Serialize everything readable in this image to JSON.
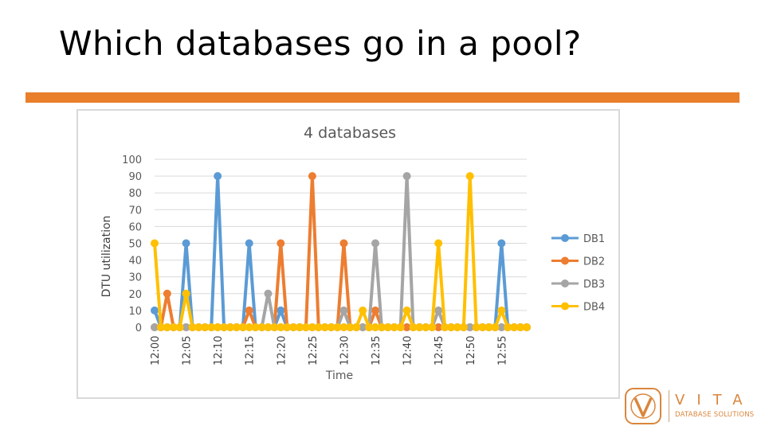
{
  "slide": {
    "title": "Which databases go in a pool?"
  },
  "colors": {
    "accent_bar": "#e97f2b",
    "db1": "#5b9bd5",
    "db2": "#ed7d31",
    "db3": "#a5a5a5",
    "db4": "#ffc000",
    "logo": "#d9863d"
  },
  "logo": {
    "name": "VITA",
    "subtitle": "DATABASE SOLUTIONS",
    "mark_icon": "vita-v-logo-icon"
  },
  "chart_data": {
    "type": "line",
    "title": "4 databases",
    "xlabel": "Time",
    "ylabel": "DTU utilization",
    "ylim": [
      0,
      100
    ],
    "yticks": [
      0,
      10,
      20,
      30,
      40,
      50,
      60,
      70,
      80,
      90,
      100
    ],
    "grid": true,
    "legend_position": "right",
    "x_tick_labels": [
      "12:00",
      "12:05",
      "12:10",
      "12:15",
      "12:20",
      "12:25",
      "12:30",
      "12:35",
      "12:40",
      "12:45",
      "12:50",
      "12:55"
    ],
    "x": [
      "12:00",
      "12:01",
      "12:02",
      "12:03",
      "12:04",
      "12:05",
      "12:06",
      "12:07",
      "12:08",
      "12:09",
      "12:10",
      "12:11",
      "12:12",
      "12:13",
      "12:14",
      "12:15",
      "12:16",
      "12:17",
      "12:18",
      "12:19",
      "12:20",
      "12:21",
      "12:22",
      "12:23",
      "12:24",
      "12:25",
      "12:26",
      "12:27",
      "12:28",
      "12:29",
      "12:30",
      "12:31",
      "12:32",
      "12:33",
      "12:34",
      "12:35",
      "12:36",
      "12:37",
      "12:38",
      "12:39",
      "12:40",
      "12:41",
      "12:42",
      "12:43",
      "12:44",
      "12:45",
      "12:46",
      "12:47",
      "12:48",
      "12:49",
      "12:50",
      "12:51",
      "12:52",
      "12:53",
      "12:54",
      "12:55",
      "12:56",
      "12:57",
      "12:58",
      "12:59"
    ],
    "series": [
      {
        "name": "DB1",
        "color": "#5b9bd5",
        "values": [
          10,
          0,
          0,
          0,
          0,
          50,
          0,
          0,
          0,
          0,
          90,
          0,
          0,
          0,
          0,
          50,
          0,
          0,
          0,
          0,
          10,
          0,
          0,
          0,
          0,
          0,
          0,
          0,
          0,
          0,
          0,
          0,
          0,
          0,
          0,
          0,
          0,
          0,
          0,
          0,
          0,
          0,
          0,
          0,
          0,
          0,
          0,
          0,
          0,
          0,
          0,
          0,
          0,
          0,
          0,
          50,
          0,
          0,
          0,
          0
        ]
      },
      {
        "name": "DB2",
        "color": "#ed7d31",
        "values": [
          0,
          0,
          20,
          0,
          0,
          0,
          0,
          0,
          0,
          0,
          0,
          0,
          0,
          0,
          0,
          10,
          0,
          0,
          0,
          0,
          50,
          0,
          0,
          0,
          0,
          90,
          0,
          0,
          0,
          0,
          50,
          0,
          0,
          0,
          0,
          10,
          0,
          0,
          0,
          0,
          0,
          0,
          0,
          0,
          0,
          0,
          0,
          0,
          0,
          0,
          0,
          0,
          0,
          0,
          0,
          0,
          0,
          0,
          0,
          0
        ]
      },
      {
        "name": "DB3",
        "color": "#a5a5a5",
        "values": [
          0,
          0,
          0,
          0,
          0,
          0,
          0,
          0,
          0,
          0,
          0,
          0,
          0,
          0,
          0,
          0,
          0,
          0,
          20,
          0,
          0,
          0,
          0,
          0,
          0,
          0,
          0,
          0,
          0,
          0,
          10,
          0,
          0,
          0,
          0,
          50,
          0,
          0,
          0,
          0,
          90,
          0,
          0,
          0,
          0,
          10,
          0,
          0,
          0,
          0,
          0,
          0,
          0,
          0,
          0,
          0,
          0,
          0,
          0,
          0
        ]
      },
      {
        "name": "DB4",
        "color": "#ffc000",
        "values": [
          50,
          0,
          0,
          0,
          0,
          20,
          0,
          0,
          0,
          0,
          0,
          0,
          0,
          0,
          0,
          0,
          0,
          0,
          0,
          0,
          0,
          0,
          0,
          0,
          0,
          0,
          0,
          0,
          0,
          0,
          0,
          0,
          0,
          10,
          0,
          0,
          0,
          0,
          0,
          0,
          10,
          0,
          0,
          0,
          0,
          50,
          0,
          0,
          0,
          0,
          90,
          0,
          0,
          0,
          0,
          10,
          0,
          0,
          0,
          0
        ]
      }
    ]
  }
}
